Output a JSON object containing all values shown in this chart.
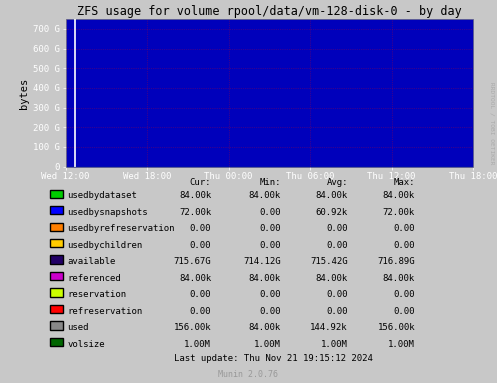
{
  "title": "ZFS usage for volume rpool/data/vm-128-disk-0 - by day",
  "ylabel": "bytes",
  "watermark": "RRDTOOL / TOBI OETIKER",
  "munin_version": "Munin 2.0.76",
  "last_update": "Last update: Thu Nov 21 19:15:12 2024",
  "bg_color": "#0000bb",
  "outer_bg_color": "#c8c8c8",
  "grid_color": "#ff0000",
  "grid_alpha": 0.45,
  "grid_linestyle": ":",
  "yticks": [
    0,
    100,
    200,
    300,
    400,
    500,
    600,
    700
  ],
  "ytick_labels": [
    "0",
    "100 G",
    "200 G",
    "300 G",
    "400 G",
    "500 G",
    "600 G",
    "700 G"
  ],
  "ylim": [
    0,
    750
  ],
  "xtick_labels": [
    "Wed 12:00",
    "Wed 18:00",
    "Thu 00:00",
    "Thu 06:00",
    "Thu 12:00",
    "Thu 18:00"
  ],
  "legend": [
    {
      "label": "usedbydataset",
      "color": "#00cc00",
      "cur": "84.00k",
      "min": "84.00k",
      "avg": "84.00k",
      "max": "84.00k"
    },
    {
      "label": "usedbysnapshots",
      "color": "#0000ff",
      "cur": "72.00k",
      "min": "0.00",
      "avg": "60.92k",
      "max": "72.00k"
    },
    {
      "label": "usedbyrefreservation",
      "color": "#ff7f00",
      "cur": "0.00",
      "min": "0.00",
      "avg": "0.00",
      "max": "0.00"
    },
    {
      "label": "usedbychildren",
      "color": "#ffcc00",
      "cur": "0.00",
      "min": "0.00",
      "avg": "0.00",
      "max": "0.00"
    },
    {
      "label": "available",
      "color": "#220066",
      "cur": "715.67G",
      "min": "714.12G",
      "avg": "715.42G",
      "max": "716.89G"
    },
    {
      "label": "referenced",
      "color": "#cc00cc",
      "cur": "84.00k",
      "min": "84.00k",
      "avg": "84.00k",
      "max": "84.00k"
    },
    {
      "label": "reservation",
      "color": "#ccff00",
      "cur": "0.00",
      "min": "0.00",
      "avg": "0.00",
      "max": "0.00"
    },
    {
      "label": "refreservation",
      "color": "#ff0000",
      "cur": "0.00",
      "min": "0.00",
      "avg": "0.00",
      "max": "0.00"
    },
    {
      "label": "used",
      "color": "#888888",
      "cur": "156.00k",
      "min": "84.00k",
      "avg": "144.92k",
      "max": "156.00k"
    },
    {
      "label": "volsize",
      "color": "#006600",
      "cur": "1.00M",
      "min": "1.00M",
      "avg": "1.00M",
      "max": "1.00M"
    }
  ]
}
